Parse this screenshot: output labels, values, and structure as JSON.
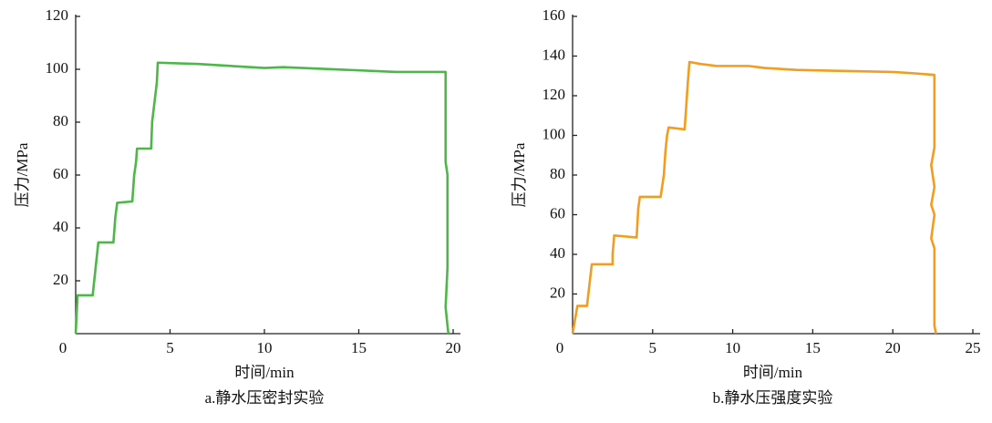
{
  "chart_data": [
    {
      "type": "line",
      "title": "a.静水压密封实验",
      "xlabel": "时间/min",
      "ylabel": "压力/MPa",
      "color": "#4cb847",
      "x": [
        0,
        0.1,
        0.9,
        1.2,
        2,
        2.1,
        2.2,
        3.0,
        3.1,
        3.2,
        3.25,
        4.0,
        4.05,
        4.3,
        4.35,
        6.5,
        10,
        11,
        17,
        19.6,
        19.6,
        19.7,
        19.7,
        19.6,
        19.7,
        19.75
      ],
      "values": [
        0,
        14.5,
        14.5,
        34.5,
        34.5,
        44,
        49.5,
        50,
        60,
        65,
        70,
        70,
        80,
        95,
        102.5,
        102,
        100.5,
        100.8,
        99,
        99,
        65,
        60,
        25,
        10,
        3,
        0
      ],
      "xlim": [
        0,
        20
      ],
      "xticks": [
        0,
        5,
        10,
        15,
        20
      ],
      "ylim": [
        0,
        120
      ],
      "yticks": [
        20,
        40,
        60,
        80,
        100,
        120
      ]
    },
    {
      "type": "line",
      "title": "b.静水压强度实验",
      "xlabel": "时间/min",
      "ylabel": "压力/MPa",
      "color": "#f39c1f",
      "x": [
        0,
        0.3,
        0.9,
        1.2,
        2.5,
        2.5,
        2.6,
        4,
        4.1,
        4.2,
        5.5,
        5.7,
        5.8,
        5.9,
        6,
        7,
        7.1,
        7.2,
        7.3,
        8,
        9,
        11,
        12,
        14,
        20,
        21,
        22.6,
        22.6,
        22.4,
        22.6,
        22.4,
        22.6,
        22.4,
        22.6,
        22.6,
        22.7
      ],
      "values": [
        0,
        14,
        14,
        35,
        35,
        40,
        49.5,
        48.5,
        63,
        69,
        69,
        80,
        92,
        100,
        104,
        103,
        115,
        127,
        137,
        136,
        135,
        135,
        134,
        133,
        132,
        131.5,
        130.5,
        94,
        85,
        74,
        65,
        60,
        48,
        43,
        4,
        0
      ],
      "xlim": [
        0,
        25
      ],
      "xticks": [
        0,
        5,
        10,
        15,
        20,
        25
      ],
      "ylim": [
        0,
        160
      ],
      "yticks": [
        20,
        40,
        60,
        80,
        100,
        120,
        140,
        160
      ]
    }
  ]
}
